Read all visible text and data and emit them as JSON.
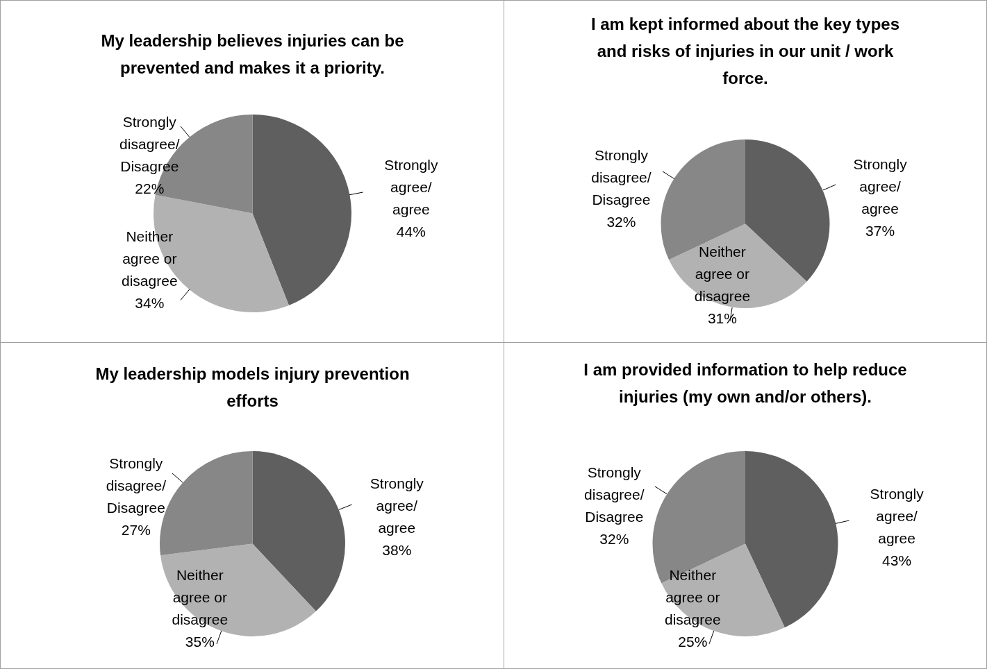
{
  "chart_data": [
    {
      "type": "pie",
      "title": "My leadership believes injuries can be prevented and makes it a priority.",
      "categories": [
        "Strongly agree/ agree",
        "Neither agree or disagree",
        "Strongly disagree/ Disagree"
      ],
      "values": [
        44,
        34,
        22
      ],
      "value_labels": [
        "44%",
        "34%",
        "22%"
      ],
      "colors": [
        "#5f5f5f",
        "#b2b2b2",
        "#878787"
      ],
      "legend": false
    },
    {
      "type": "pie",
      "title": "I am kept informed about the key types and risks of injuries in our unit / work force.",
      "categories": [
        "Strongly agree/ agree",
        "Neither agree or disagree",
        "Strongly disagree/ Disagree"
      ],
      "values": [
        37,
        31,
        32
      ],
      "value_labels": [
        "37%",
        "31%",
        "32%"
      ],
      "colors": [
        "#5f5f5f",
        "#b2b2b2",
        "#878787"
      ],
      "legend": false
    },
    {
      "type": "pie",
      "title": "My leadership models injury prevention efforts",
      "categories": [
        "Strongly agree/ agree",
        "Neither agree or disagree",
        "Strongly disagree/ Disagree"
      ],
      "values": [
        38,
        35,
        27
      ],
      "value_labels": [
        "38%",
        "35%",
        "27%"
      ],
      "colors": [
        "#5f5f5f",
        "#b2b2b2",
        "#878787"
      ],
      "legend": false
    },
    {
      "type": "pie",
      "title": "I am provided information to help reduce injuries (my own and/or others).",
      "categories": [
        "Strongly agree/ agree",
        "Neither agree or disagree",
        "Strongly disagree/ Disagree"
      ],
      "values": [
        43,
        25,
        32
      ],
      "value_labels": [
        "43%",
        "25%",
        "32%"
      ],
      "colors": [
        "#5f5f5f",
        "#b2b2b2",
        "#878787"
      ],
      "legend": false
    }
  ]
}
